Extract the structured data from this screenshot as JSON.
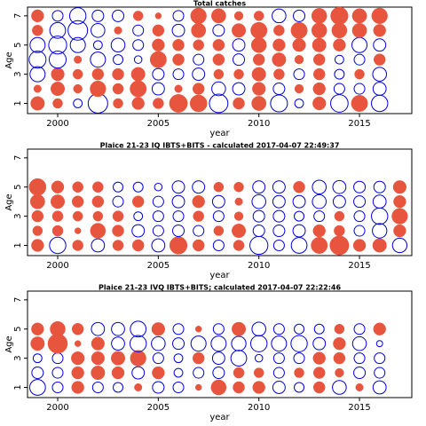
{
  "colors": {
    "positive": "#E8553E",
    "negative": "#0000DD",
    "axis": "#000000"
  },
  "chart_data": [
    {
      "type": "scatter",
      "title": "Total catches",
      "xlabel": "year",
      "ylabel": "Age",
      "xlim": [
        1998.5,
        2017.6
      ],
      "ylim": [
        0.3,
        7.6
      ],
      "xticks": [
        2000,
        2005,
        2010,
        2015
      ],
      "yticks": [
        1,
        3,
        5,
        7
      ],
      "years": [
        1999,
        2000,
        2001,
        2002,
        2003,
        2004,
        2005,
        2006,
        2007,
        2008,
        2009,
        2010,
        2011,
        2012,
        2013,
        2014,
        2015,
        2016
      ],
      "ages": [
        1,
        2,
        3,
        4,
        5,
        6,
        7
      ],
      "residuals": [
        [
          1.0,
          0.5,
          -0.4,
          -2.0,
          0.5,
          0.8,
          0.6,
          1.7,
          1.5,
          -1.8,
          0.7,
          1.1,
          -1.5,
          -0.4,
          0.9,
          -1.6,
          1.4,
          -1.4
        ],
        [
          0.3,
          1.0,
          0.4,
          1.3,
          0.6,
          1.4,
          -0.8,
          0.3,
          0.7,
          -1.0,
          -0.8,
          0.9,
          -0.7,
          0.4,
          0.8,
          -0.6,
          -0.6,
          -0.9
        ],
        [
          -1.2,
          0.9,
          0.5,
          0.7,
          0.7,
          1.0,
          -0.7,
          -0.6,
          -0.8,
          0.5,
          0.5,
          1.0,
          0.6,
          -0.6,
          0.7,
          -0.5,
          0.5,
          -1.0
        ],
        [
          -1.5,
          -1.5,
          0.3,
          -1.2,
          -0.5,
          -0.3,
          1.4,
          0.7,
          -0.6,
          0.7,
          -0.7,
          0.7,
          1.0,
          0.4,
          0.7,
          -0.4,
          -0.6,
          0.7
        ],
        [
          -1.2,
          -1.7,
          -1.2,
          -0.4,
          -1.0,
          -0.6,
          0.8,
          0.7,
          0.6,
          0.7,
          -0.8,
          1.2,
          0.8,
          0.9,
          1.0,
          0.8,
          -1.2,
          -0.8
        ],
        [
          0.6,
          -1.3,
          -2.0,
          -1.0,
          0.3,
          -0.6,
          0.7,
          -0.8,
          1.1,
          -0.7,
          1.0,
          1.4,
          0.6,
          1.4,
          1.2,
          1.2,
          1.1,
          0.8
        ],
        [
          0.8,
          -0.6,
          -1.4,
          -0.7,
          -0.7,
          0.5,
          0.2,
          -0.6,
          1.3,
          1.1,
          0.4,
          0.5,
          -1.0,
          -0.7,
          1.2,
          1.6,
          1.1,
          1.3
        ]
      ]
    },
    {
      "type": "scatter",
      "title": "Plaice 21-23 IQ IBTS+BITS - calculated 2017-04-07 22:49:37",
      "xlabel": "year",
      "ylabel": "Age",
      "xlim": [
        1998.5,
        2017.6
      ],
      "ylim": [
        0.3,
        7.6
      ],
      "xticks": [
        2000,
        2005,
        2010,
        2015
      ],
      "yticks": [
        1,
        3,
        5,
        7
      ],
      "years": [
        1999,
        2000,
        2001,
        2002,
        2003,
        2004,
        2005,
        2006,
        2007,
        2008,
        2009,
        2010,
        2011,
        2012,
        2013,
        2014,
        2015,
        2016,
        2017
      ],
      "ages": [
        1,
        2,
        3,
        4,
        5
      ],
      "residuals": [
        [
          0.8,
          -1.4,
          0.6,
          -0.9,
          0.6,
          0.7,
          -0.9,
          1.6,
          0.7,
          -0.6,
          0.6,
          -1.7,
          -0.6,
          -1.3,
          1.4,
          1.9,
          0.8,
          1.0,
          -1.1
        ],
        [
          0.5,
          0.6,
          0.2,
          1.2,
          0.7,
          -0.8,
          -0.6,
          -0.7,
          -0.6,
          0.5,
          1.0,
          -0.7,
          -0.7,
          -0.8,
          0.8,
          0.6,
          -0.6,
          -1.1,
          0.8
        ],
        [
          0.7,
          0.6,
          0.5,
          0.5,
          0.6,
          -0.4,
          -0.6,
          -0.6,
          0.6,
          -0.6,
          0.4,
          -0.7,
          -0.7,
          -0.5,
          -0.6,
          0.5,
          -0.6,
          -1.4,
          1.3
        ],
        [
          1.1,
          1.0,
          0.7,
          0.7,
          -0.6,
          0.7,
          -0.6,
          -0.8,
          0.8,
          -0.8,
          0.3,
          -1.0,
          -0.8,
          -0.8,
          -1.0,
          -0.8,
          -0.7,
          -0.9,
          0.8
        ],
        [
          1.5,
          0.8,
          0.6,
          0.6,
          -0.5,
          -0.5,
          -0.3,
          -0.8,
          -0.8,
          0.5,
          0.5,
          -0.8,
          -0.8,
          0.7,
          -1.0,
          -0.9,
          -0.7,
          -0.7,
          0.9
        ]
      ]
    },
    {
      "type": "scatter",
      "title": "Plaice 21-23 IVQ IBTS+BITS; calculated 2017-04-07 22:22:46",
      "xlabel": "year",
      "ylabel": "Age",
      "xlim": [
        1998.5,
        2017.6
      ],
      "ylim": [
        0.3,
        7.6
      ],
      "xticks": [
        2000,
        2005,
        2010,
        2015
      ],
      "yticks": [
        1,
        3,
        5,
        7
      ],
      "years": [
        1999,
        2000,
        2001,
        2002,
        2003,
        2004,
        2005,
        2006,
        2007,
        2008,
        2009,
        2010,
        2011,
        2012,
        2013,
        2014,
        2015,
        2016
      ],
      "ages": [
        1,
        2,
        3,
        4,
        5
      ],
      "residuals": [
        [
          -1.3,
          -0.6,
          0.8,
          -0.6,
          -0.5,
          0.3,
          -0.7,
          -0.6,
          0.2,
          1.2,
          0.7,
          0.8,
          -0.8,
          -0.5,
          0.7,
          -1.0,
          0.3,
          -0.9
        ],
        [
          -0.7,
          -0.6,
          0.8,
          1.0,
          0.8,
          -0.8,
          0.8,
          -0.4,
          -0.6,
          -0.7,
          0.6,
          0.5,
          -0.6,
          0.5,
          0.7,
          0.4,
          -0.7,
          -0.6
        ],
        [
          -0.4,
          -0.6,
          0.9,
          0.9,
          1.0,
          1.3,
          -0.6,
          -0.4,
          0.7,
          -0.8,
          -1.3,
          -0.3,
          -0.6,
          -0.6,
          0.8,
          0.7,
          -0.6,
          -0.6
        ],
        [
          1.0,
          2.0,
          0.2,
          0.9,
          -0.9,
          -1.4,
          -1.0,
          -0.7,
          -1.2,
          -1.2,
          -1.1,
          -1.4,
          -1.2,
          -1.4,
          -0.8,
          0.8,
          -1.0,
          -0.2
        ],
        [
          0.8,
          1.2,
          0.7,
          -0.9,
          -0.9,
          -1.3,
          0.9,
          -0.6,
          0.2,
          -0.6,
          1.0,
          -1.0,
          -0.6,
          -0.5,
          -0.5,
          0.5,
          -0.6,
          0.8
        ]
      ]
    }
  ]
}
